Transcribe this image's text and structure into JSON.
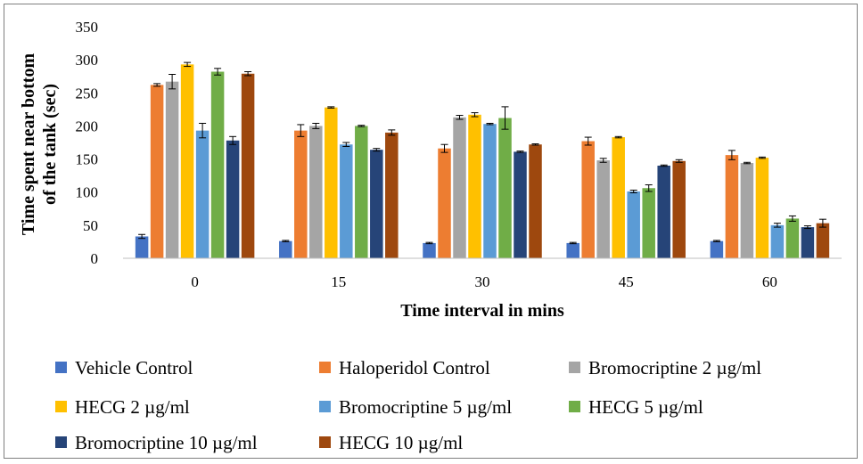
{
  "chart_data": {
    "type": "bar",
    "categories": [
      "0",
      "15",
      "30",
      "45",
      "60"
    ],
    "xlabel": "Time interval in mins",
    "ylabel_line1": "Time spent near bottom",
    "ylabel_line2": "of the tank (sec)",
    "ylim": [
      0,
      350
    ],
    "yticks": [
      "0",
      "50",
      "100",
      "150",
      "200",
      "250",
      "300",
      "350"
    ],
    "grid": false,
    "legend_placement": "bottom",
    "series": [
      {
        "name": "Vehicle Control",
        "color": "#4472c4",
        "values": [
          33,
          26,
          23,
          23,
          26
        ],
        "errors": [
          3,
          1,
          1,
          1,
          1
        ]
      },
      {
        "name": "Haloperidol Control",
        "color": "#ed7d31",
        "values": [
          262,
          193,
          166,
          177,
          156
        ],
        "errors": [
          2,
          9,
          6,
          6,
          7
        ]
      },
      {
        "name": "Bromocriptine 2 µg/ml",
        "color": "#a5a5a5",
        "values": [
          267,
          200,
          213,
          148,
          144
        ],
        "errors": [
          11,
          4,
          3,
          3,
          1
        ]
      },
      {
        "name": "HECG 2 µg/ml",
        "color": "#ffc000",
        "values": [
          293,
          228,
          217,
          183,
          152
        ],
        "errors": [
          3,
          1,
          3,
          1,
          1
        ]
      },
      {
        "name": "Bromocriptine 5 µg/ml",
        "color": "#5b9bd5",
        "values": [
          193,
          172,
          203,
          101,
          50
        ],
        "errors": [
          11,
          3,
          1,
          2,
          3
        ]
      },
      {
        "name": "HECG 5 µg/ml",
        "color": "#70ad47",
        "values": [
          282,
          200,
          212,
          106,
          60
        ],
        "errors": [
          5,
          1,
          17,
          5,
          4
        ]
      },
      {
        "name": "Bromocriptine 10 µg/ml",
        "color": "#264478",
        "values": [
          178,
          164,
          161,
          140,
          47
        ],
        "errors": [
          6,
          2,
          1,
          1,
          2
        ]
      },
      {
        "name": "HECG 10 µg/ml",
        "color": "#9e480e",
        "values": [
          279,
          190,
          172,
          147,
          53
        ],
        "errors": [
          3,
          4,
          1,
          2,
          6
        ]
      }
    ]
  }
}
